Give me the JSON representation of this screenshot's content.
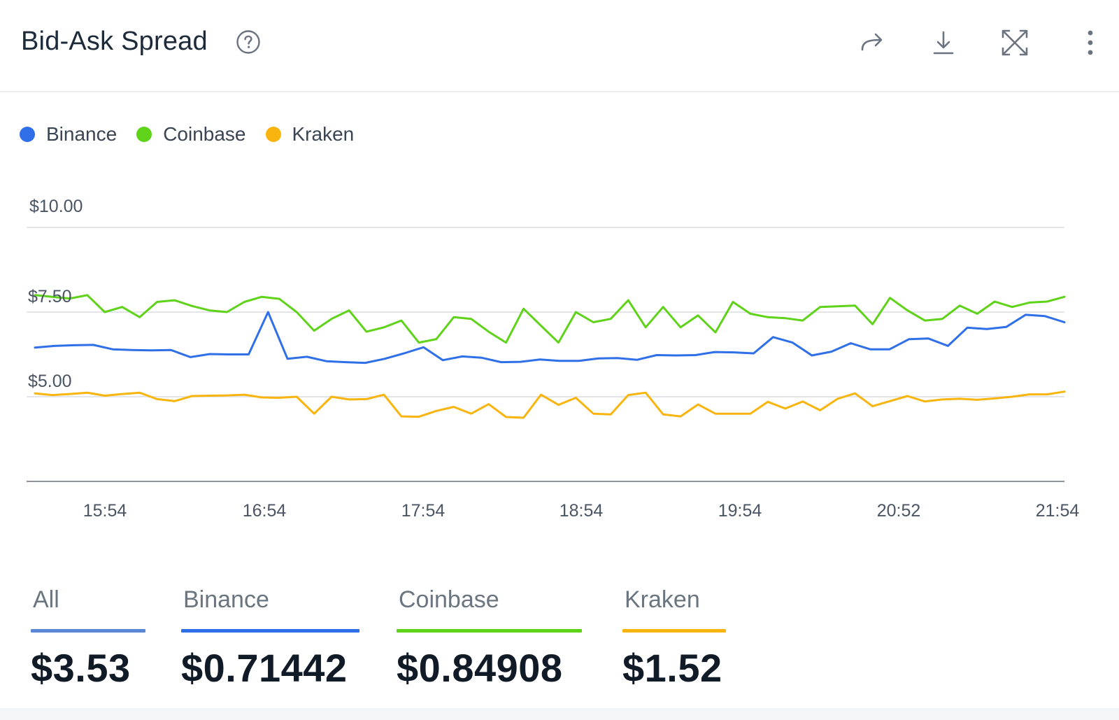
{
  "header": {
    "title": "Bid-Ask Spread",
    "icons": [
      "help-icon",
      "share-icon",
      "download-icon",
      "fullscreen-icon",
      "more-vertical-icon"
    ]
  },
  "legend": [
    {
      "label": "Binance",
      "color": "#2f6fe8"
    },
    {
      "label": "Coinbase",
      "color": "#5fd21a"
    },
    {
      "label": "Kraken",
      "color": "#f9b50f"
    }
  ],
  "chart_data": {
    "type": "line",
    "title": "",
    "xlabel": "",
    "ylabel": "",
    "x_ticks": [
      "15:54",
      "16:54",
      "17:54",
      "18:54",
      "19:54",
      "20:52",
      "21:54"
    ],
    "y_ticks": [
      "$10.00",
      "$7.50",
      "$5.00"
    ],
    "ylim": [
      2.5,
      10
    ],
    "grid": true,
    "legend_position": "top-left",
    "series": [
      {
        "name": "Binance",
        "color": "#2f6fe8",
        "values": [
          6.45,
          6.5,
          6.52,
          6.53,
          6.4,
          6.38,
          6.37,
          6.38,
          6.17,
          6.26,
          6.25,
          6.25,
          7.5,
          6.12,
          6.18,
          6.05,
          6.02,
          6.0,
          6.12,
          6.28,
          6.46,
          6.08,
          6.19,
          6.15,
          6.02,
          6.03,
          6.1,
          6.06,
          6.06,
          6.13,
          6.14,
          6.09,
          6.23,
          6.22,
          6.23,
          6.32,
          6.31,
          6.28,
          6.76,
          6.6,
          6.22,
          6.33,
          6.58,
          6.4,
          6.4,
          6.7,
          6.72,
          6.5,
          7.04,
          7.0,
          7.06,
          7.42,
          7.38,
          7.2
        ]
      },
      {
        "name": "Coinbase",
        "color": "#5fd21a",
        "values": [
          8.0,
          7.95,
          7.9,
          8.0,
          7.5,
          7.65,
          7.35,
          7.8,
          7.85,
          7.68,
          7.55,
          7.5,
          7.8,
          7.95,
          7.89,
          7.5,
          6.95,
          7.3,
          7.55,
          6.92,
          7.05,
          7.25,
          6.6,
          6.7,
          7.35,
          7.3,
          6.92,
          6.6,
          7.6,
          7.1,
          6.6,
          7.5,
          7.2,
          7.3,
          7.85,
          7.05,
          7.65,
          7.05,
          7.4,
          6.9,
          7.8,
          7.45,
          7.35,
          7.32,
          7.25,
          7.65,
          7.67,
          7.69,
          7.14,
          7.92,
          7.55,
          7.25,
          7.3,
          7.69,
          7.45,
          7.81,
          7.65,
          7.78,
          7.81,
          7.95
        ]
      },
      {
        "name": "Kraken",
        "color": "#f9b50f",
        "values": [
          5.1,
          5.05,
          5.08,
          5.12,
          5.03,
          5.08,
          5.12,
          4.93,
          4.87,
          5.02,
          5.03,
          5.04,
          5.06,
          4.98,
          4.97,
          5.0,
          4.5,
          5.0,
          4.92,
          4.93,
          5.06,
          4.42,
          4.41,
          4.58,
          4.7,
          4.5,
          4.78,
          4.4,
          4.38,
          5.06,
          4.76,
          4.97,
          4.5,
          4.48,
          5.05,
          5.12,
          4.48,
          4.42,
          4.77,
          4.5,
          4.5,
          4.5,
          4.85,
          4.65,
          4.86,
          4.6,
          4.94,
          5.1,
          4.72,
          4.87,
          5.02,
          4.86,
          4.92,
          4.94,
          4.91,
          4.95,
          5.0,
          5.07,
          5.07,
          5.15
        ]
      }
    ]
  },
  "summary": [
    {
      "label": "All",
      "value": "$3.53",
      "color": "#5a86d6"
    },
    {
      "label": "Binance",
      "value": "$0.71442",
      "color": "#2f6fe8"
    },
    {
      "label": "Coinbase",
      "value": "$0.84908",
      "color": "#5fd21a"
    },
    {
      "label": "Kraken",
      "value": "$1.52",
      "color": "#f9b50f"
    }
  ]
}
